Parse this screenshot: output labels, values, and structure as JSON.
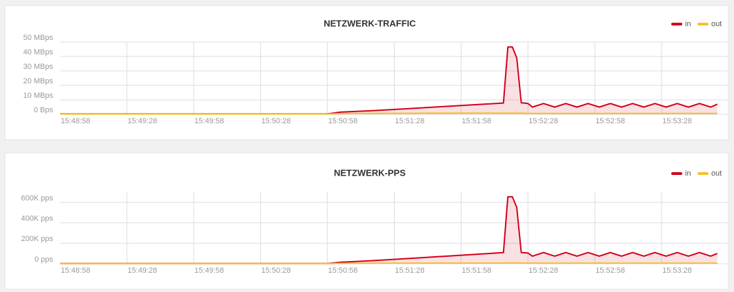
{
  "chart_data": [
    {
      "type": "line",
      "title": "NETZWERK-TRAFFIC",
      "x": [
        "15:48:58",
        "15:50:58",
        "15:51:04",
        "15:51:18",
        "15:51:33",
        "15:51:48",
        "15:52:03",
        "15:52:17",
        "15:52:19",
        "15:52:21",
        "15:52:23",
        "15:52:25",
        "15:52:28",
        "15:52:30",
        "15:52:35",
        "15:52:40",
        "15:52:45",
        "15:52:50",
        "15:52:55",
        "15:53:00",
        "15:53:05",
        "15:53:10",
        "15:53:15",
        "15:53:20",
        "15:53:25",
        "15:53:30",
        "15:53:35",
        "15:53:40",
        "15:53:45",
        "15:53:50",
        "15:53:53"
      ],
      "series": [
        {
          "name": "in",
          "color": "#d0021b",
          "values": [
            0.3,
            0.3,
            1.5,
            2.5,
            3.8,
            5.2,
            6.5,
            7.8,
            46.5,
            46.5,
            39,
            8,
            7.5,
            5,
            7.5,
            5,
            7.5,
            5,
            7.5,
            5,
            7.5,
            5,
            7.5,
            5,
            7.5,
            5,
            7.5,
            5,
            7.5,
            5,
            7
          ]
        },
        {
          "name": "out",
          "color": "#f5c030",
          "values": [
            0.2,
            0.2,
            0.5,
            0.6,
            0.7,
            0.8,
            0.8,
            0.8,
            0.8,
            0.8,
            0.8,
            0.8,
            0.6,
            0.6,
            0.6,
            0.6,
            0.6,
            0.6,
            0.6,
            0.6,
            0.6,
            0.6,
            0.6,
            0.6,
            0.6,
            0.6,
            0.6,
            0.6,
            0.6,
            0.6,
            0.6
          ]
        }
      ],
      "xlim": [
        "15:48:58",
        "15:53:58"
      ],
      "xticks": [
        "15:48:58",
        "15:49:28",
        "15:49:58",
        "15:50:28",
        "15:50:58",
        "15:51:28",
        "15:51:58",
        "15:52:28",
        "15:52:58",
        "15:53:28"
      ],
      "ylim": [
        0,
        50
      ],
      "yticks": [
        {
          "value": 0,
          "label": "0 Bps"
        },
        {
          "value": 10,
          "label": "10 MBps"
        },
        {
          "value": 20,
          "label": "20 MBps"
        },
        {
          "value": 30,
          "label": "30 MBps"
        },
        {
          "value": 40,
          "label": "40 MBps"
        },
        {
          "value": 50,
          "label": "50 MBps"
        }
      ],
      "grid": true,
      "legend": "top-right"
    },
    {
      "type": "line",
      "title": "NETZWERK-PPS",
      "x": [
        "15:48:58",
        "15:50:58",
        "15:51:04",
        "15:51:18",
        "15:51:33",
        "15:51:48",
        "15:52:03",
        "15:52:17",
        "15:52:19",
        "15:52:21",
        "15:52:23",
        "15:52:25",
        "15:52:28",
        "15:52:30",
        "15:52:35",
        "15:52:40",
        "15:52:45",
        "15:52:50",
        "15:52:55",
        "15:53:00",
        "15:53:05",
        "15:53:10",
        "15:53:15",
        "15:53:20",
        "15:53:25",
        "15:53:30",
        "15:53:35",
        "15:53:40",
        "15:53:45",
        "15:53:50",
        "15:53:53"
      ],
      "series": [
        {
          "name": "in",
          "color": "#d0021b",
          "values": [
            3000,
            3000,
            15000,
            30000,
            50000,
            70000,
            90000,
            110000,
            655000,
            655000,
            550000,
            110000,
            105000,
            75000,
            110000,
            75000,
            110000,
            75000,
            110000,
            75000,
            110000,
            75000,
            110000,
            75000,
            110000,
            75000,
            110000,
            75000,
            110000,
            75000,
            100000
          ]
        },
        {
          "name": "out",
          "color": "#f5c030",
          "values": [
            2000,
            2000,
            4000,
            5000,
            6000,
            7000,
            7000,
            7000,
            8000,
            8000,
            8000,
            7000,
            6000,
            6000,
            6000,
            6000,
            6000,
            6000,
            6000,
            6000,
            6000,
            6000,
            6000,
            6000,
            6000,
            6000,
            6000,
            6000,
            6000,
            6000,
            6000
          ]
        }
      ],
      "xlim": [
        "15:48:58",
        "15:53:58"
      ],
      "xticks": [
        "15:48:58",
        "15:49:28",
        "15:49:58",
        "15:50:28",
        "15:50:58",
        "15:51:28",
        "15:51:58",
        "15:52:28",
        "15:52:58",
        "15:53:28"
      ],
      "ylim": [
        0,
        700000
      ],
      "yticks": [
        {
          "value": 0,
          "label": "0 pps"
        },
        {
          "value": 200000,
          "label": "200K pps"
        },
        {
          "value": 400000,
          "label": "400K pps"
        },
        {
          "value": 600000,
          "label": "600K pps"
        }
      ],
      "grid": true,
      "legend": "top-right"
    }
  ]
}
